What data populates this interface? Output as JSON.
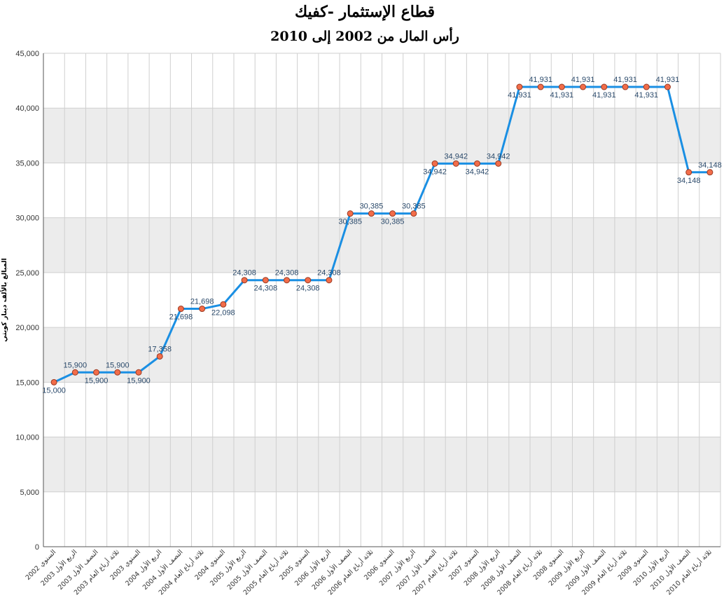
{
  "chart_data": {
    "type": "line",
    "title": "قطاع الإستثمار -كفيك",
    "subtitle": "رأس المال من 2002 إلى 2010",
    "ylabel": "المبالغ بالألف دينار كويتي",
    "xlabel": "",
    "ylim": [
      0,
      45000
    ],
    "yticks": [
      "0",
      "5,000",
      "10,000",
      "15,000",
      "20,000",
      "25,000",
      "30,000",
      "35,000",
      "40,000",
      "45,000"
    ],
    "grid": true,
    "legend": "none",
    "colors": {
      "line": "#1a8fe3",
      "marker_fill": "#f26d4a",
      "marker_stroke": "#9a3a22",
      "band": "#ececec"
    },
    "categories": [
      "السنوي 2002",
      "الربع الأول 2003",
      "النصف الأول 2003",
      "ثلاثة أرباع العام 2003",
      "السنوي 2003",
      "الربع الأول 2004",
      "النصف الأول 2004",
      "ثلاثة أرباع العام 2004",
      "السنوي 2004",
      "الربع الأول 2005",
      "النصف الأول 2005",
      "ثلاثة أرباع العام 2005",
      "السنوي 2005",
      "الربع الأول 2006",
      "النصف الأول 2006",
      "ثلاثة أرباع العام 2006",
      "السنوي 2006",
      "الربع الأول 2007",
      "النصف الأول 2007",
      "ثلاثة أرباع العام 2007",
      "السنوي 2007",
      "الربع الأول 2008",
      "النصف الأول 2008",
      "ثلاثة أرباع العام 2008",
      "السنوي 2008",
      "الربع الأول 2009",
      "النصف الأول 2009",
      "ثلاثة أرباع العام 2009",
      "السنوي 2009",
      "الربع الأول 2010",
      "النصف الأول 2010",
      "ثلاثة أرباع العام 2010"
    ],
    "values": [
      15000,
      15900,
      15900,
      15900,
      15900,
      17358,
      21698,
      21698,
      22098,
      24308,
      24308,
      24308,
      24308,
      24308,
      30385,
      30385,
      30385,
      30385,
      34942,
      34942,
      34942,
      34942,
      41931,
      41931,
      41931,
      41931,
      41931,
      41931,
      41931,
      41931,
      34148,
      34148
    ],
    "data_labels": [
      "15,000",
      "15,900",
      "15,900",
      "15,900",
      "15,900",
      "17,358",
      "21,698",
      "21,698",
      "22,098",
      "24,308",
      "24,308",
      "24,308",
      "24,308",
      "24,308",
      "30,385",
      "30,385",
      "30,385",
      "30,385",
      "34,942",
      "34,942",
      "34,942",
      "34,942",
      "41,931",
      "41,931",
      "41,931",
      "41,931",
      "41,931",
      "41,931",
      "41,931",
      "41,931",
      "34,148",
      "34,148"
    ]
  }
}
